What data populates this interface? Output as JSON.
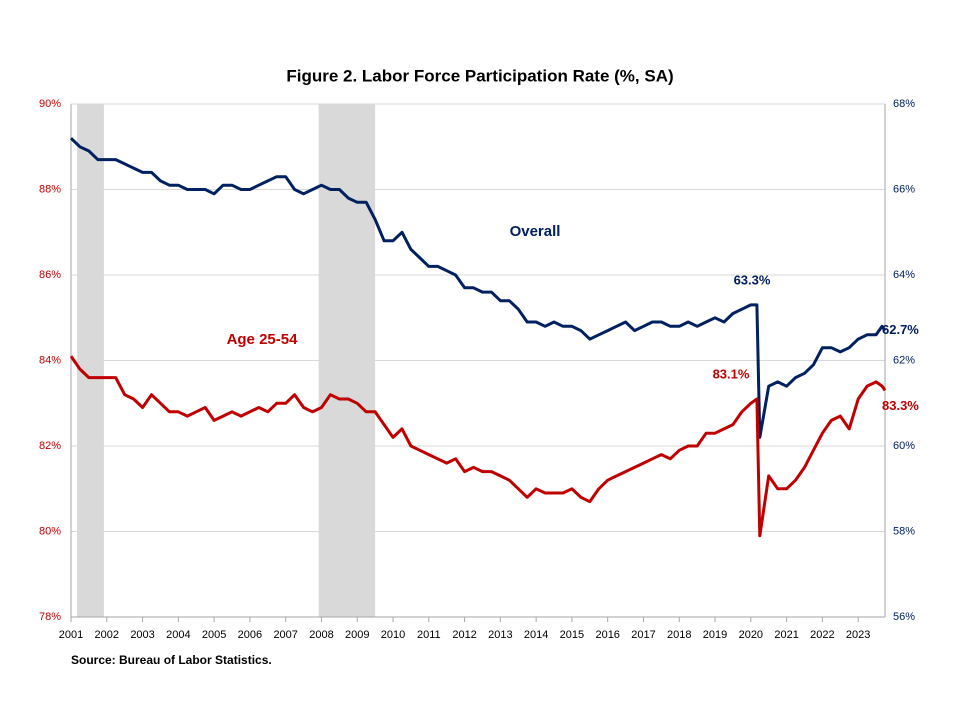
{
  "chart_data": {
    "type": "line",
    "title": "Figure 2. Labor Force Participation  Rate (%, SA)",
    "source": "Source: Bureau of Labor Statistics.",
    "x": [
      2001,
      2001.25,
      2001.5,
      2001.75,
      2002,
      2002.25,
      2002.5,
      2002.75,
      2003,
      2003.25,
      2003.5,
      2003.75,
      2004,
      2004.25,
      2004.5,
      2004.75,
      2005,
      2005.25,
      2005.5,
      2005.75,
      2006,
      2006.25,
      2006.5,
      2006.75,
      2007,
      2007.25,
      2007.5,
      2007.75,
      2008,
      2008.25,
      2008.5,
      2008.75,
      2009,
      2009.25,
      2009.5,
      2009.75,
      2010,
      2010.25,
      2010.5,
      2010.75,
      2011,
      2011.25,
      2011.5,
      2011.75,
      2012,
      2012.25,
      2012.5,
      2012.75,
      2013,
      2013.25,
      2013.5,
      2013.75,
      2014,
      2014.25,
      2014.5,
      2014.75,
      2015,
      2015.25,
      2015.5,
      2015.75,
      2016,
      2016.25,
      2016.5,
      2016.75,
      2017,
      2017.25,
      2017.5,
      2017.75,
      2018,
      2018.25,
      2018.5,
      2018.75,
      2019,
      2019.25,
      2019.5,
      2019.75,
      2020,
      2020.17,
      2020.25,
      2020.5,
      2020.75,
      2021,
      2021.25,
      2021.5,
      2021.75,
      2022,
      2022.25,
      2022.5,
      2022.75,
      2023,
      2023.25,
      2023.5,
      2023.67,
      2023.75
    ],
    "series": [
      {
        "name": "Overall",
        "color": "#002060",
        "axis": "y2",
        "values": [
          67.2,
          67.0,
          66.9,
          66.7,
          66.7,
          66.7,
          66.6,
          66.5,
          66.4,
          66.4,
          66.2,
          66.1,
          66.1,
          66.0,
          66.0,
          66.0,
          65.9,
          66.1,
          66.1,
          66.0,
          66.0,
          66.1,
          66.2,
          66.3,
          66.3,
          66.0,
          65.9,
          66.0,
          66.1,
          66.0,
          66.0,
          65.8,
          65.7,
          65.7,
          65.3,
          64.8,
          64.8,
          65.0,
          64.6,
          64.4,
          64.2,
          64.2,
          64.1,
          64.0,
          63.7,
          63.7,
          63.6,
          63.6,
          63.4,
          63.4,
          63.2,
          62.9,
          62.9,
          62.8,
          62.9,
          62.8,
          62.8,
          62.7,
          62.5,
          62.6,
          62.7,
          62.8,
          62.9,
          62.7,
          62.8,
          62.9,
          62.9,
          62.8,
          62.8,
          62.9,
          62.8,
          62.9,
          63.0,
          62.9,
          63.1,
          63.2,
          63.3,
          63.3,
          60.2,
          61.4,
          61.5,
          61.4,
          61.6,
          61.7,
          61.9,
          62.3,
          62.3,
          62.2,
          62.3,
          62.5,
          62.6,
          62.6,
          62.8,
          62.7
        ],
        "peak_label": {
          "value": 63.3,
          "label": "63.3%"
        },
        "end_label": {
          "value": 62.7,
          "label": "62.7%"
        }
      },
      {
        "name": "Age 25-54",
        "color": "#c00000",
        "axis": "y",
        "values": [
          84.1,
          83.8,
          83.6,
          83.6,
          83.6,
          83.6,
          83.2,
          83.1,
          82.9,
          83.2,
          83.0,
          82.8,
          82.8,
          82.7,
          82.8,
          82.9,
          82.6,
          82.7,
          82.8,
          82.7,
          82.8,
          82.9,
          82.8,
          83.0,
          83.0,
          83.2,
          82.9,
          82.8,
          82.9,
          83.2,
          83.1,
          83.1,
          83.0,
          82.8,
          82.8,
          82.5,
          82.2,
          82.4,
          82.0,
          81.9,
          81.8,
          81.7,
          81.6,
          81.7,
          81.4,
          81.5,
          81.4,
          81.4,
          81.3,
          81.2,
          81.0,
          80.8,
          81.0,
          80.9,
          80.9,
          80.9,
          81.0,
          80.8,
          80.7,
          81.0,
          81.2,
          81.3,
          81.4,
          81.5,
          81.6,
          81.7,
          81.8,
          81.7,
          81.9,
          82.0,
          82.0,
          82.3,
          82.3,
          82.4,
          82.5,
          82.8,
          83.0,
          83.1,
          79.9,
          81.3,
          81.0,
          81.0,
          81.2,
          81.5,
          81.9,
          82.3,
          82.6,
          82.7,
          82.4,
          83.1,
          83.4,
          83.5,
          83.4,
          83.3
        ],
        "peak_label": {
          "value": 83.1,
          "label": "83.1%"
        },
        "end_label": {
          "value": 83.3,
          "label": "83.3%"
        }
      }
    ],
    "shaded_periods": [
      [
        2001.17,
        2001.92
      ],
      [
        2007.92,
        2009.5
      ]
    ],
    "xlim": [
      2001,
      2023.75
    ],
    "xticks": [
      2001,
      2002,
      2003,
      2004,
      2005,
      2006,
      2007,
      2008,
      2009,
      2010,
      2011,
      2012,
      2013,
      2014,
      2015,
      2016,
      2017,
      2018,
      2019,
      2020,
      2021,
      2022,
      2023
    ],
    "ylim": [
      78,
      90
    ],
    "yticks": [
      {
        "value": 78,
        "label": "78%"
      },
      {
        "value": 80,
        "label": "80%"
      },
      {
        "value": 82,
        "label": "82%"
      },
      {
        "value": 84,
        "label": "84%"
      },
      {
        "value": 86,
        "label": "86%"
      },
      {
        "value": 88,
        "label": "88%"
      },
      {
        "value": 90,
        "label": "90%"
      }
    ],
    "y2lim": [
      56,
      68
    ],
    "y2ticks": [
      {
        "value": 56,
        "label": "56%"
      },
      {
        "value": 58,
        "label": "58%"
      },
      {
        "value": 60,
        "label": "60%"
      },
      {
        "value": 62,
        "label": "62%"
      },
      {
        "value": 64,
        "label": "64%"
      },
      {
        "value": 66,
        "label": "66%"
      },
      {
        "value": 68,
        "label": "68%"
      }
    ],
    "grid": true
  }
}
